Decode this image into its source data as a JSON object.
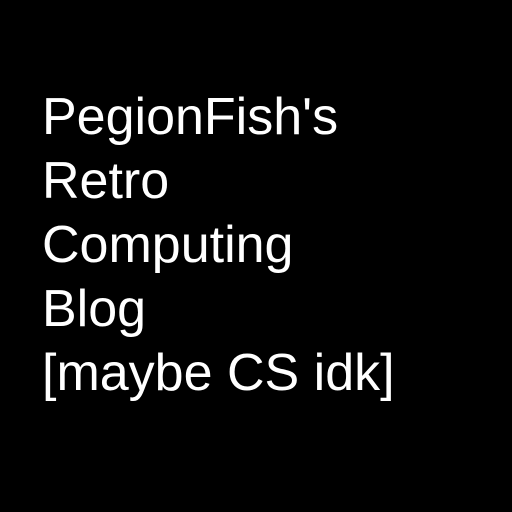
{
  "title": {
    "lines": [
      "PegionFish's",
      "Retro",
      "Computing",
      "Blog",
      "[maybe CS idk]"
    ]
  },
  "colors": {
    "background": "#000000",
    "text": "#ffffff"
  }
}
